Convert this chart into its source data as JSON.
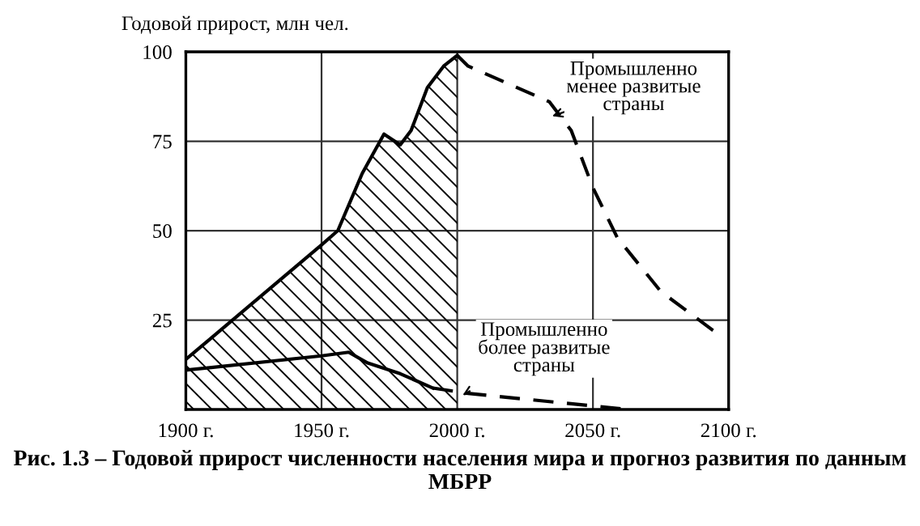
{
  "chart_data": {
    "type": "line",
    "title": "Рис. 1.3 – Годовой прирост численности населения мира и прогноз развития по данным МБРР",
    "ylabel": "Годовой прирост, млн чел.",
    "xlim": [
      1900,
      2100
    ],
    "ylim": [
      0,
      100
    ],
    "xticks": [
      {
        "value": 1900,
        "label": "1900 г."
      },
      {
        "value": 1950,
        "label": "1950 г."
      },
      {
        "value": 2000,
        "label": "2000 г."
      },
      {
        "value": 2050,
        "label": "2050 г."
      },
      {
        "value": 2100,
        "label": "2100 г."
      }
    ],
    "yticks": [
      25,
      50,
      75,
      100
    ],
    "grid": true,
    "series": [
      {
        "type": "area",
        "color": "#000000",
        "line_style": "solid",
        "x": [
          1900,
          1950,
          1956,
          1965,
          1973,
          1979,
          1983,
          1989,
          1995,
          2000
        ],
        "values": [
          14,
          46,
          50,
          66,
          77,
          74,
          78,
          90,
          96,
          99
        ]
      },
      {
        "color": "#000000",
        "line_style": "dashed",
        "x": [
          2000,
          2004,
          2034,
          2042,
          2050,
          2059,
          2075,
          2098
        ],
        "values": [
          99,
          96,
          86,
          78,
          62,
          48,
          33,
          20
        ]
      },
      {
        "color": "#000000",
        "line_style": "solid",
        "x": [
          1900,
          1950,
          1960,
          1967,
          1979,
          1991
        ],
        "values": [
          11,
          15,
          16,
          13,
          10,
          6
        ]
      },
      {
        "color": "#000000",
        "line_style": "dashed",
        "x": [
          1991,
          2004,
          2050,
          2063
        ],
        "values": [
          6,
          4.5,
          1,
          0
        ]
      }
    ],
    "annotations": [
      {
        "text": "Промышленно\nменее развитые\nстраны",
        "x": 2035,
        "y": 82
      },
      {
        "text": "Промышленно\nболее развитые\nстраны",
        "x": 2002,
        "y": 4
      }
    ]
  }
}
